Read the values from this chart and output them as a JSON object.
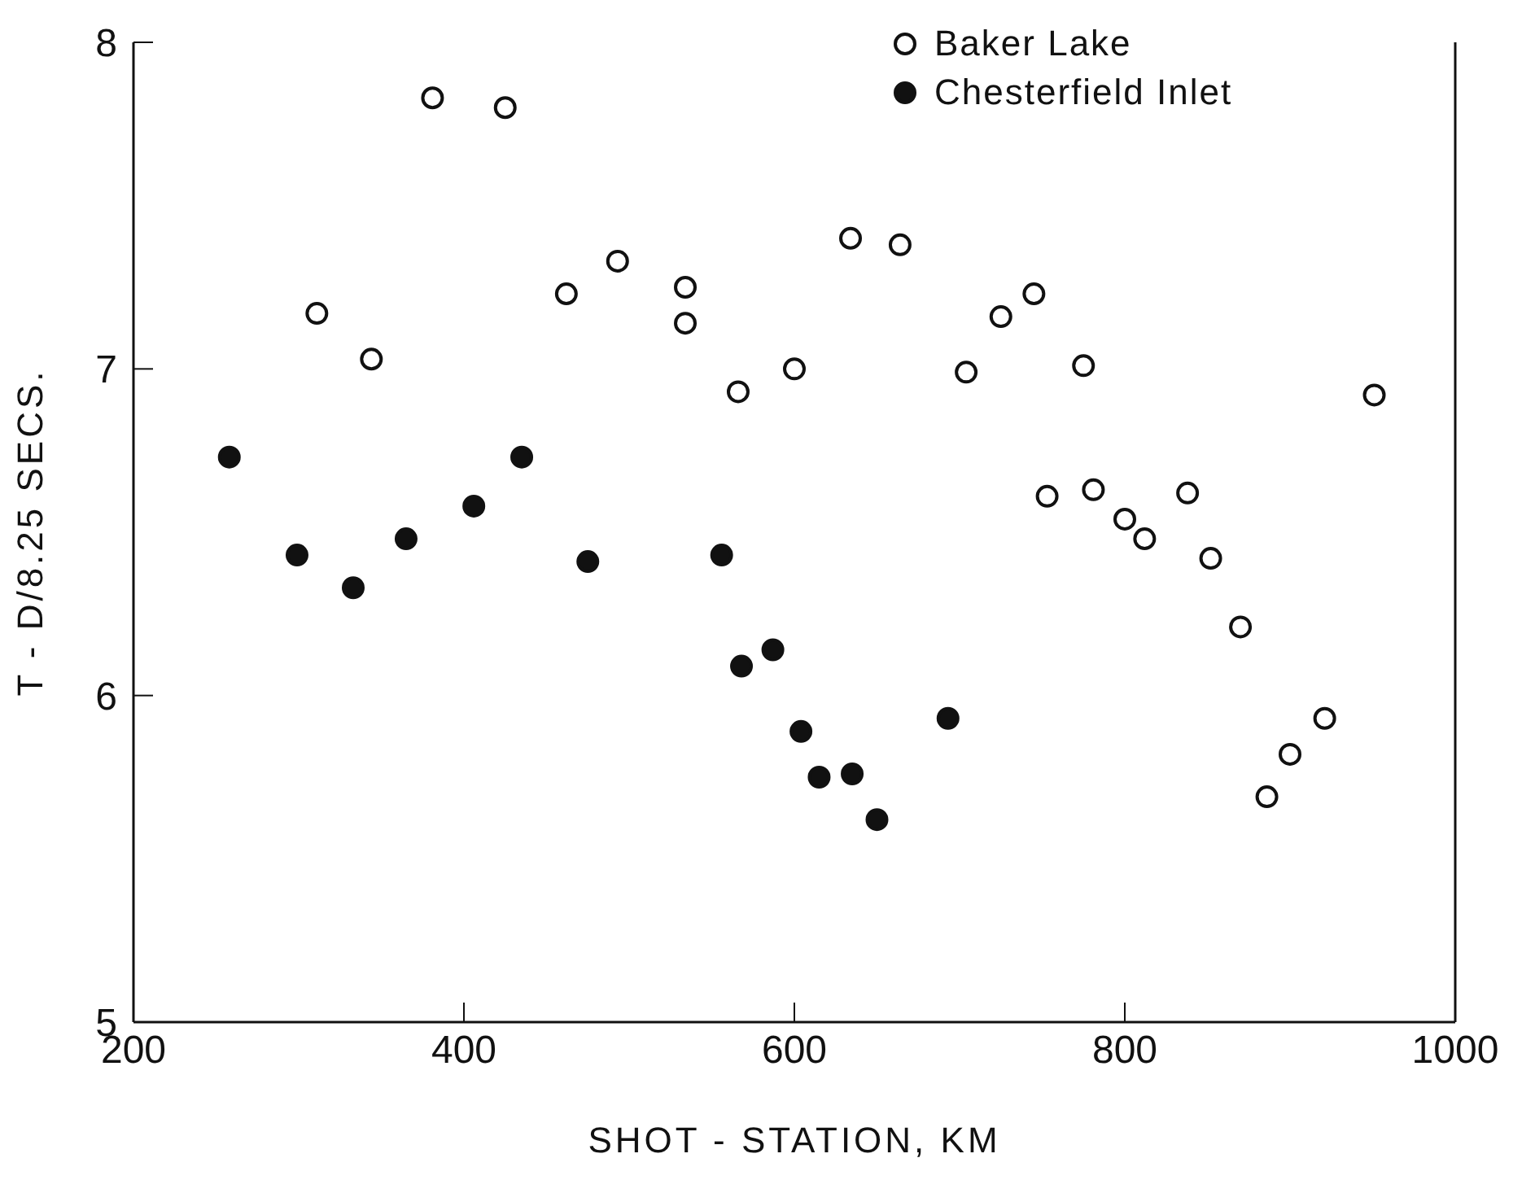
{
  "chart_data": {
    "type": "scatter",
    "xlabel": "SHOT - STATION, KM",
    "ylabel": "T - D/8.25 SECS.",
    "xlim": [
      200,
      1000
    ],
    "xticks": [
      200,
      400,
      600,
      800,
      1000
    ],
    "ylim": [
      5,
      8
    ],
    "yticks": [
      5,
      6,
      7,
      8
    ],
    "legend": "top right",
    "marker": "circle",
    "series": [
      {
        "name": "Baker Lake",
        "color": "#ffffff",
        "x": [
          311,
          344,
          381,
          425,
          462,
          493,
          534,
          534,
          566,
          600,
          634,
          664,
          704,
          725,
          745,
          775,
          753,
          781,
          800,
          812,
          838,
          852,
          870,
          886,
          900,
          921,
          951
        ],
        "values": [
          7.17,
          7.03,
          7.83,
          7.8,
          7.23,
          7.33,
          7.25,
          7.14,
          6.93,
          7.0,
          7.4,
          7.38,
          6.99,
          7.16,
          7.23,
          7.01,
          6.61,
          6.63,
          6.54,
          6.48,
          6.62,
          6.42,
          6.21,
          5.69,
          5.82,
          5.93,
          6.92
        ]
      },
      {
        "name": "Chesterfield Inlet",
        "color": "#111111",
        "x": [
          258,
          299,
          333,
          365,
          406,
          435,
          475,
          556,
          568,
          587,
          604,
          615,
          635,
          650,
          693
        ],
        "values": [
          6.73,
          6.43,
          6.33,
          6.48,
          6.58,
          6.73,
          6.41,
          6.43,
          6.09,
          6.14,
          5.89,
          5.75,
          5.76,
          5.62,
          5.93
        ]
      }
    ]
  }
}
